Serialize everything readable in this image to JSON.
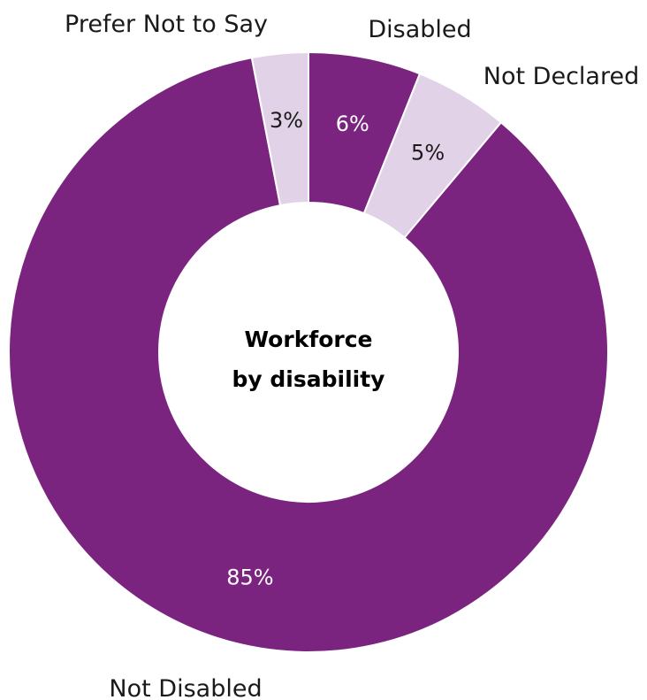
{
  "chart_data": {
    "type": "pie",
    "title": "",
    "center_title_lines": [
      "Workforce",
      "by disability"
    ],
    "donut": true,
    "categories": [
      "Disabled",
      "Not Declared",
      "Not Disabled",
      "Prefer Not to Say"
    ],
    "values": [
      6,
      5,
      85,
      3
    ],
    "value_labels": [
      "6%",
      "5%",
      "85%",
      "3%"
    ],
    "colors": [
      "#7a2480",
      "#e2d2e8",
      "#7a2480",
      "#e2d2e8"
    ],
    "value_label_colors": [
      "#ffffff",
      "#1a1a1a",
      "#ffffff",
      "#1a1a1a"
    ],
    "legend": "none"
  }
}
